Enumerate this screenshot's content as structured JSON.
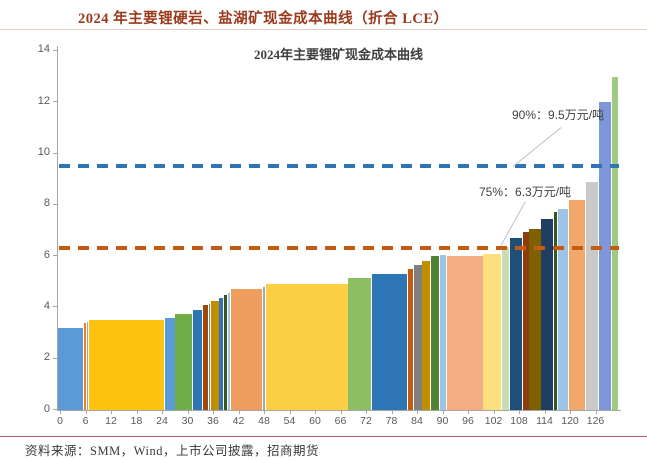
{
  "header": {
    "title": "2024 年主要锂硬岩、盐湖矿现金成本曲线（折合 LCE）"
  },
  "footer": {
    "source_text": "资料来源：SMM，Wind，上市公司披露，招商期货"
  },
  "chart_data": {
    "type": "bar",
    "title": "2024年主要锂矿现金成本曲线",
    "subtitle": "",
    "xlabel": "",
    "ylabel": "",
    "legend": "none",
    "grid": false,
    "x_axis": {
      "min": 0,
      "max": 132,
      "tick_step": 6,
      "ticks": [
        0,
        6,
        12,
        18,
        24,
        30,
        36,
        42,
        48,
        54,
        60,
        66,
        72,
        78,
        84,
        90,
        96,
        102,
        108,
        114,
        120,
        126
      ]
    },
    "y_axis": {
      "min": 0,
      "max": 14,
      "tick_step": 2,
      "ticks": [
        0,
        2,
        4,
        6,
        8,
        10,
        12,
        14
      ]
    },
    "bar_meaning": "each bar = one lithium mine; bar width = output share (x units), bar height = cash cost 万元/吨 LCE",
    "bars": [
      {
        "w": 6.0,
        "h": 3.2,
        "color": "#5B9BD5"
      },
      {
        "w": 0.8,
        "h": 3.4,
        "color": "#ED7D31"
      },
      {
        "w": 0.5,
        "h": 3.45,
        "color": "#A6A6A6"
      },
      {
        "w": 17.7,
        "h": 3.5,
        "color": "#FEC310"
      },
      {
        "w": 2.5,
        "h": 3.6,
        "color": "#5B9BD5"
      },
      {
        "w": 4.0,
        "h": 3.75,
        "color": "#70AD47"
      },
      {
        "w": 2.5,
        "h": 3.9,
        "color": "#2E75B6"
      },
      {
        "w": 1.3,
        "h": 4.1,
        "color": "#9E480E"
      },
      {
        "w": 0.5,
        "h": 4.15,
        "color": "#7F7F7F"
      },
      {
        "w": 2.0,
        "h": 4.25,
        "color": "#BF8F00"
      },
      {
        "w": 1.0,
        "h": 4.35,
        "color": "#2E75B6"
      },
      {
        "w": 1.0,
        "h": 4.5,
        "color": "#375623"
      },
      {
        "w": 0.7,
        "h": 4.55,
        "color": "#9DC3E6"
      },
      {
        "w": 7.5,
        "h": 4.7,
        "color": "#EF9D5D"
      },
      {
        "w": 0.7,
        "h": 4.8,
        "color": "#A6A6A6"
      },
      {
        "w": 19.3,
        "h": 4.9,
        "color": "#FCCF44"
      },
      {
        "w": 5.5,
        "h": 5.15,
        "color": "#8CC063"
      },
      {
        "w": 8.5,
        "h": 5.3,
        "color": "#2E75B6"
      },
      {
        "w": 1.3,
        "h": 5.5,
        "color": "#C55A11"
      },
      {
        "w": 2.0,
        "h": 5.65,
        "color": "#7F7F7F"
      },
      {
        "w": 2.0,
        "h": 5.8,
        "color": "#BF8F00"
      },
      {
        "w": 2.2,
        "h": 6.0,
        "color": "#548235"
      },
      {
        "w": 1.6,
        "h": 6.05,
        "color": "#9DC3E6"
      },
      {
        "w": 8.5,
        "h": 6.0,
        "color": "#F5AD83"
      },
      {
        "w": 4.3,
        "h": 6.1,
        "color": "#FCDF7E"
      },
      {
        "w": 2.0,
        "h": 6.35,
        "color": "#C8DDB4"
      },
      {
        "w": 3.0,
        "h": 6.7,
        "color": "#1F4E79"
      },
      {
        "w": 1.5,
        "h": 6.95,
        "color": "#8E3E0D"
      },
      {
        "w": 2.8,
        "h": 7.05,
        "color": "#7F6000"
      },
      {
        "w": 3.0,
        "h": 7.45,
        "color": "#203E64"
      },
      {
        "w": 0.8,
        "h": 7.7,
        "color": "#375623"
      },
      {
        "w": 2.7,
        "h": 7.85,
        "color": "#9DC3E6"
      },
      {
        "w": 4.0,
        "h": 8.2,
        "color": "#F2A76B"
      },
      {
        "w": 3.0,
        "h": 8.9,
        "color": "#C9C9C9"
      },
      {
        "w": 3.0,
        "h": 12.0,
        "color": "#7D97D8"
      },
      {
        "w": 1.5,
        "h": 13.0,
        "color": "#9FCB80"
      }
    ],
    "reference_lines": [
      {
        "percentile": "90%",
        "value": 9.5,
        "color": "#2E75B6",
        "label": "90%：9.5万元/吨"
      },
      {
        "percentile": "75%",
        "value": 6.3,
        "color": "#C55A11",
        "label": "75%：6.3万元/吨"
      }
    ]
  }
}
